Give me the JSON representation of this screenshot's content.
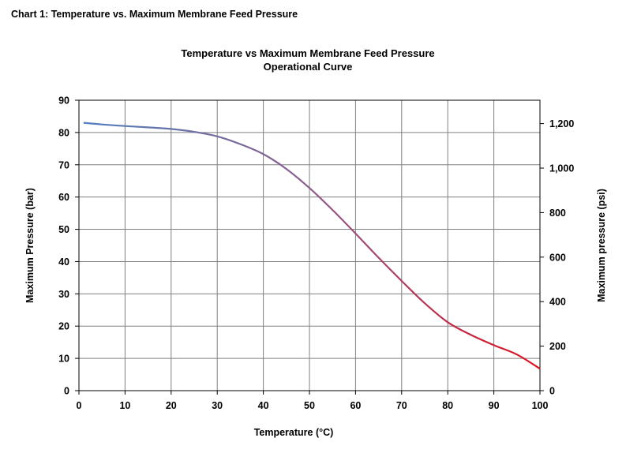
{
  "heading": "Chart 1: Temperature vs. Maximum Membrane Feed Pressure",
  "chart_data": {
    "type": "line",
    "title": "Temperature vs Maximum Membrane Feed Pressure",
    "subtitle": "Operational Curve",
    "xlabel": "Temperature (°C)",
    "ylabel": "Maximum Pressure (bar)",
    "y2label": "Maximum pressure (psi)",
    "xlim": [
      0,
      100
    ],
    "ylim": [
      0,
      90
    ],
    "y2lim": [
      0,
      1305
    ],
    "x_ticks": [
      0,
      10,
      20,
      30,
      40,
      50,
      60,
      70,
      80,
      90,
      100
    ],
    "y_ticks": [
      0,
      10,
      20,
      30,
      40,
      50,
      60,
      70,
      80,
      90
    ],
    "y2_ticks": [
      "0",
      "200",
      "400",
      "600",
      "800",
      "1,000",
      "1,200"
    ],
    "y2_tick_values": [
      0,
      200,
      400,
      600,
      800,
      1000,
      1200
    ],
    "grid": true,
    "legend": "none",
    "line_color_start": "#4f81bd",
    "line_color_end": "#e0101e",
    "series": [
      {
        "x": [
          1,
          5,
          10,
          15,
          20,
          25,
          30,
          35,
          40,
          45,
          50,
          55,
          60,
          65,
          70,
          75,
          80,
          85,
          90,
          95,
          100
        ],
        "values": [
          83,
          82.5,
          82,
          81.6,
          81.1,
          80.2,
          78.8,
          76.4,
          73.3,
          68.7,
          62.8,
          56,
          48.7,
          41.2,
          34,
          27.1,
          21.2,
          17.3,
          14.1,
          11.2,
          6.8
        ]
      }
    ]
  }
}
